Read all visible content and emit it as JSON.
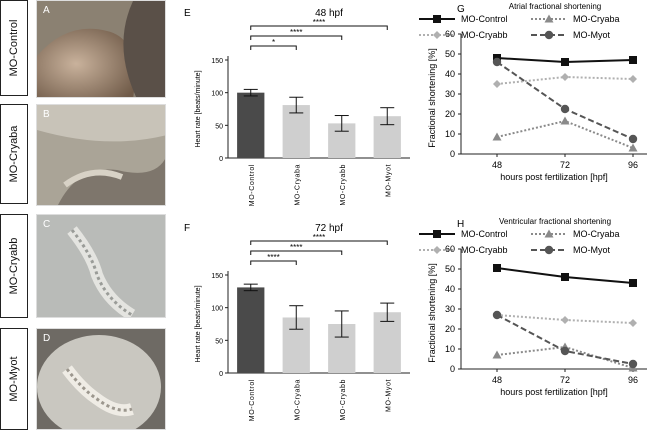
{
  "panel_letters": {
    "A": "A",
    "B": "B",
    "C": "C",
    "D": "D",
    "E": "E",
    "F": "F",
    "G": "G",
    "H": "H"
  },
  "images": [
    {
      "letter": "A",
      "label": "MO-Control"
    },
    {
      "letter": "B",
      "label": "MO-Cryaba"
    },
    {
      "letter": "C",
      "label": "MO-Cryabb"
    },
    {
      "letter": "D",
      "label": "MO-Myot"
    }
  ],
  "chart_data": [
    {
      "type": "bar",
      "letter": "E",
      "title": "48 hpf",
      "categories": [
        "MO-Control",
        "MO-Cryaba",
        "MO-Cryabb",
        "MO-Myot"
      ],
      "values": [
        100,
        81,
        53,
        64
      ],
      "errors": [
        5,
        12,
        12,
        13
      ],
      "colors": [
        "#4a4a4a",
        "#cfcfcf",
        "#cfcfcf",
        "#cfcfcf"
      ],
      "ylabel": "Heart rate [beats/minute]",
      "ylim": [
        0,
        150
      ],
      "yticks": [
        0,
        50,
        100,
        150
      ],
      "significance": [
        {
          "from": 0,
          "to": 1,
          "label": "*"
        },
        {
          "from": 0,
          "to": 2,
          "label": "****"
        },
        {
          "from": 0,
          "to": 3,
          "label": "****"
        }
      ]
    },
    {
      "type": "bar",
      "letter": "F",
      "title": "72 hpf",
      "categories": [
        "MO-Control",
        "MO-Cryaba",
        "MO-Cryabb",
        "MO-Myot"
      ],
      "values": [
        131,
        85,
        75,
        93
      ],
      "errors": [
        5,
        18,
        20,
        14
      ],
      "colors": [
        "#4a4a4a",
        "#cfcfcf",
        "#cfcfcf",
        "#cfcfcf"
      ],
      "ylabel": "Heart rate [beats/minute]",
      "ylim": [
        0,
        150
      ],
      "yticks": [
        0,
        50,
        100,
        150
      ],
      "significance": [
        {
          "from": 0,
          "to": 1,
          "label": "****"
        },
        {
          "from": 0,
          "to": 2,
          "label": "****"
        },
        {
          "from": 0,
          "to": 3,
          "label": "****"
        }
      ]
    },
    {
      "type": "line",
      "letter": "G",
      "title": "Atrial fractional shortening",
      "x": [
        48,
        72,
        96
      ],
      "xlabel": "hours post fertilization [hpf]",
      "ylabel": "Fractional shortening [%]",
      "ylim": [
        0,
        60
      ],
      "yticks": [
        0,
        10,
        20,
        30,
        40,
        50,
        60
      ],
      "series": [
        {
          "name": "MO-Control",
          "values": [
            48,
            46,
            47
          ],
          "color": "#111111",
          "dash": "",
          "marker": "square"
        },
        {
          "name": "MO-Cryaba",
          "values": [
            8.5,
            16.5,
            3
          ],
          "color": "#8a8a8a",
          "dash": "2,2",
          "marker": "triangle"
        },
        {
          "name": "MO-Cryabb",
          "values": [
            35,
            38.5,
            37.5
          ],
          "color": "#b0b0b0",
          "dash": "2,2",
          "marker": "diamond"
        },
        {
          "name": "MO-Myot",
          "values": [
            46,
            22.5,
            7.5
          ],
          "color": "#555555",
          "dash": "6,3",
          "marker": "circle"
        }
      ]
    },
    {
      "type": "line",
      "letter": "H",
      "title": "Ventricular fractional shortening",
      "x": [
        48,
        72,
        96
      ],
      "xlabel": "hours post fertilization [hpf]",
      "ylabel": "Fractional shortening [%]",
      "ylim": [
        0,
        60
      ],
      "yticks": [
        0,
        10,
        20,
        30,
        40,
        50,
        60
      ],
      "series": [
        {
          "name": "MO-Control",
          "values": [
            50.5,
            46,
            43
          ],
          "color": "#111111",
          "dash": "",
          "marker": "square"
        },
        {
          "name": "MO-Cryaba",
          "values": [
            7,
            11,
            0.5
          ],
          "color": "#8a8a8a",
          "dash": "2,2",
          "marker": "triangle"
        },
        {
          "name": "MO-Cryabb",
          "values": [
            27,
            24.5,
            23
          ],
          "color": "#b0b0b0",
          "dash": "2,2",
          "marker": "diamond"
        },
        {
          "name": "MO-Myot",
          "values": [
            27,
            9,
            2.5
          ],
          "color": "#555555",
          "dash": "6,3",
          "marker": "circle"
        }
      ]
    }
  ]
}
